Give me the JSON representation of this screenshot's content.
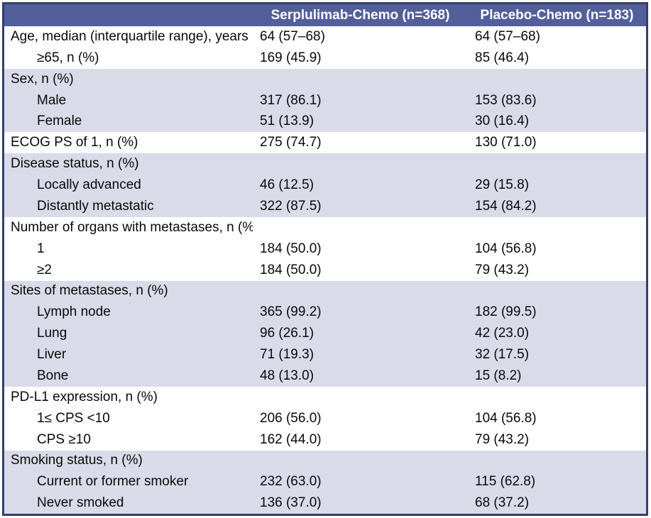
{
  "colors": {
    "header_bg": "#535f9b",
    "header_text": "#ffffff",
    "row_shade": "#d9dce8",
    "border": "#333f6f",
    "text": "#090909"
  },
  "table": {
    "columns": [
      "",
      "Serplulimab-Chemo (n=368)",
      "Placebo-Chemo (n=183)"
    ],
    "rows": [
      {
        "label": "Age, median (interquartile range), years",
        "serplulimab": "64 (57–68)",
        "placebo": "64 (57–68)",
        "indent": false,
        "shaded": false
      },
      {
        "label": "≥65, n (%)",
        "serplulimab": "169 (45.9)",
        "placebo": "85 (46.4)",
        "indent": true,
        "shaded": false
      },
      {
        "label": "Sex, n (%)",
        "serplulimab": "",
        "placebo": "",
        "indent": false,
        "shaded": true
      },
      {
        "label": "Male",
        "serplulimab": "317 (86.1)",
        "placebo": "153 (83.6)",
        "indent": true,
        "shaded": true
      },
      {
        "label": "Female",
        "serplulimab": "51 (13.9)",
        "placebo": "30 (16.4)",
        "indent": true,
        "shaded": true
      },
      {
        "label": "ECOG PS of 1, n (%)",
        "serplulimab": "275 (74.7)",
        "placebo": "130 (71.0)",
        "indent": false,
        "shaded": false
      },
      {
        "label": "Disease status, n (%)",
        "serplulimab": "",
        "placebo": "",
        "indent": false,
        "shaded": true
      },
      {
        "label": "Locally advanced",
        "serplulimab": "46 (12.5)",
        "placebo": "29 (15.8)",
        "indent": true,
        "shaded": true
      },
      {
        "label": "Distantly metastatic",
        "serplulimab": "322 (87.5)",
        "placebo": "154 (84.2)",
        "indent": true,
        "shaded": true
      },
      {
        "label": "Number of organs with metastases, n (%)",
        "serplulimab": "",
        "placebo": "",
        "indent": false,
        "shaded": false
      },
      {
        "label": "1",
        "serplulimab": "184 (50.0)",
        "placebo": "104 (56.8)",
        "indent": true,
        "shaded": false
      },
      {
        "label": "≥2",
        "serplulimab": "184 (50.0)",
        "placebo": "79 (43.2)",
        "indent": true,
        "shaded": false
      },
      {
        "label": "Sites of metastases, n (%)",
        "serplulimab": "",
        "placebo": "",
        "indent": false,
        "shaded": true
      },
      {
        "label": "Lymph node",
        "serplulimab": "365 (99.2)",
        "placebo": "182 (99.5)",
        "indent": true,
        "shaded": true
      },
      {
        "label": "Lung",
        "serplulimab": "96 (26.1)",
        "placebo": "42 (23.0)",
        "indent": true,
        "shaded": true
      },
      {
        "label": "Liver",
        "serplulimab": "71 (19.3)",
        "placebo": "32 (17.5)",
        "indent": true,
        "shaded": true
      },
      {
        "label": "Bone",
        "serplulimab": "48 (13.0)",
        "placebo": "15 (8.2)",
        "indent": true,
        "shaded": true
      },
      {
        "label": "PD-L1 expression, n (%)",
        "serplulimab": "",
        "placebo": "",
        "indent": false,
        "shaded": false
      },
      {
        "label": "1≤ CPS <10",
        "serplulimab": "206 (56.0)",
        "placebo": "104 (56.8)",
        "indent": true,
        "shaded": false
      },
      {
        "label": "CPS ≥10",
        "serplulimab": "162 (44.0)",
        "placebo": "79 (43.2)",
        "indent": true,
        "shaded": false
      },
      {
        "label": "Smoking status, n (%)",
        "serplulimab": "",
        "placebo": "",
        "indent": false,
        "shaded": true
      },
      {
        "label": "Current or former smoker",
        "serplulimab": "232 (63.0)",
        "placebo": "115 (62.8)",
        "indent": true,
        "shaded": true
      },
      {
        "label": "Never smoked",
        "serplulimab": "136 (37.0)",
        "placebo": "68 (37.2)",
        "indent": true,
        "shaded": true
      }
    ]
  }
}
